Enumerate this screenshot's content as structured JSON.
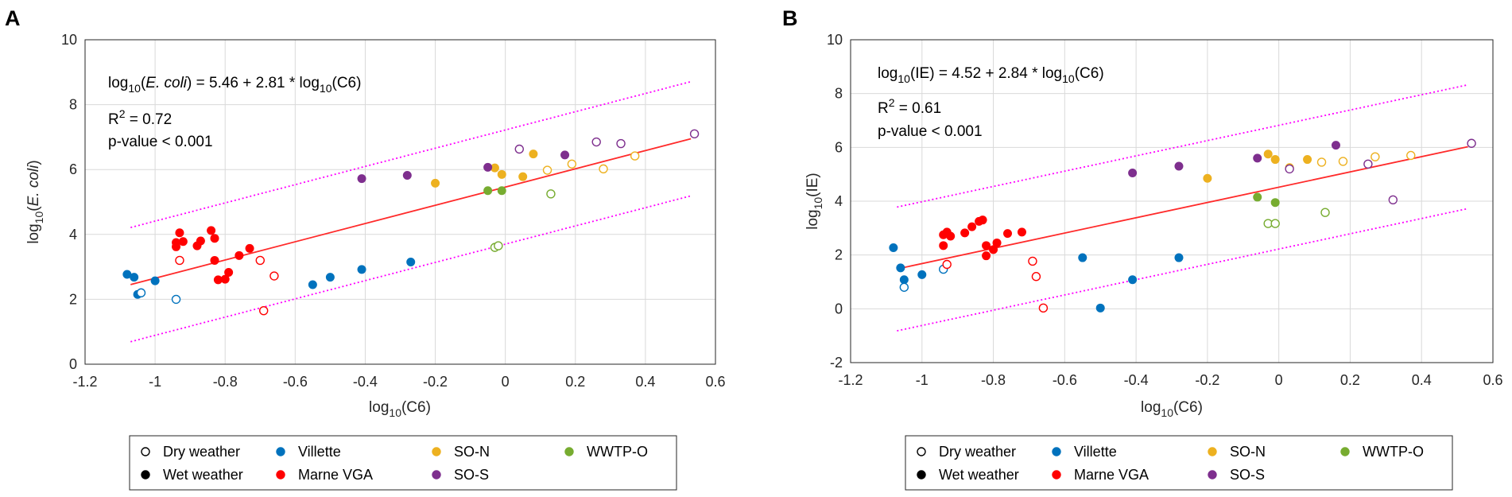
{
  "colors": {
    "Villette": "#0072BD",
    "Marne VGA": "#FF0000",
    "SO-N": "#EDB120",
    "SO-S": "#7E2F8E",
    "WWTP-O": "#77AC30",
    "fit": "#FF2A2A",
    "band": "#FF00FF",
    "grid": "#D9D9D9",
    "axis": "#262626"
  },
  "legend": {
    "items": [
      {
        "label": "Dry weather",
        "kind": "open",
        "color": "#000000"
      },
      {
        "label": "Villette",
        "kind": "filled",
        "color": "#0072BD"
      },
      {
        "label": "SO-N",
        "kind": "filled",
        "color": "#EDB120"
      },
      {
        "label": "WWTP-O",
        "kind": "filled",
        "color": "#77AC30"
      },
      {
        "label": "Wet weather",
        "kind": "filled",
        "color": "#000000"
      },
      {
        "label": "Marne VGA",
        "kind": "filled",
        "color": "#FF0000"
      },
      {
        "label": "SO-S",
        "kind": "filled",
        "color": "#7E2F8E"
      }
    ]
  },
  "chart_data": [
    {
      "panel": "A",
      "type": "scatter",
      "xlabel": {
        "main": "log",
        "sub": "10",
        "rest": "(C6)"
      },
      "ylabel": {
        "main": "log",
        "sub": "10",
        "rest": "(E. coli)"
      },
      "xlim": [
        -1.2,
        0.6
      ],
      "ylim": [
        0,
        10
      ],
      "xticks": [
        -1.2,
        -1,
        -0.8,
        -0.6,
        -0.4,
        -0.2,
        0,
        0.2,
        0.4,
        0.6
      ],
      "yticks": [
        0,
        2,
        4,
        6,
        8,
        10
      ],
      "annotation": {
        "equation_lhs": "log",
        "equation_sub": "10",
        "equation_var": "E. coli",
        "equation_rhs": ") = 5.46 + 2.81 * log",
        "equation_sub2": "10",
        "equation_end": "(C6)",
        "r2_label": "R",
        "r2_sup": "2",
        "r2_value": " = 0.72",
        "pvalue": "p-value < 0.001"
      },
      "fit": {
        "intercept": 5.46,
        "slope": 2.81,
        "x_range": [
          -1.07,
          0.53
        ]
      },
      "band": {
        "offset": 1.76
      },
      "series": [
        {
          "name": "Villette",
          "color": "#0072BD",
          "dry": [
            [
              -1.04,
              2.2
            ],
            [
              -0.94,
              2.0
            ]
          ],
          "wet": [
            [
              -1.08,
              2.77
            ],
            [
              -1.06,
              2.68
            ],
            [
              -1.05,
              2.15
            ],
            [
              -1.0,
              2.57
            ],
            [
              -0.55,
              2.45
            ],
            [
              -0.5,
              2.68
            ],
            [
              -0.41,
              2.92
            ],
            [
              -0.27,
              3.15
            ]
          ]
        },
        {
          "name": "Marne VGA",
          "color": "#FF0000",
          "dry": [
            [
              -0.93,
              3.2
            ],
            [
              -0.7,
              3.2
            ],
            [
              -0.69,
              1.65
            ],
            [
              -0.66,
              2.72
            ]
          ],
          "wet": [
            [
              -0.94,
              3.62
            ],
            [
              -0.94,
              3.75
            ],
            [
              -0.93,
              4.05
            ],
            [
              -0.92,
              3.78
            ],
            [
              -0.88,
              3.65
            ],
            [
              -0.87,
              3.8
            ],
            [
              -0.84,
              4.12
            ],
            [
              -0.83,
              3.88
            ],
            [
              -0.83,
              3.2
            ],
            [
              -0.82,
              2.6
            ],
            [
              -0.8,
              2.62
            ],
            [
              -0.79,
              2.83
            ],
            [
              -0.76,
              3.35
            ],
            [
              -0.73,
              3.57
            ]
          ]
        },
        {
          "name": "SO-N",
          "color": "#EDB120",
          "dry": [
            [
              0.12,
              5.98
            ],
            [
              0.19,
              6.17
            ],
            [
              0.28,
              6.02
            ],
            [
              0.37,
              6.42
            ]
          ],
          "wet": [
            [
              -0.2,
              5.58
            ],
            [
              -0.03,
              6.05
            ],
            [
              -0.01,
              5.85
            ],
            [
              0.05,
              5.78
            ],
            [
              0.08,
              6.48
            ]
          ]
        },
        {
          "name": "SO-S",
          "color": "#7E2F8E",
          "dry": [
            [
              0.04,
              6.63
            ],
            [
              0.26,
              6.85
            ],
            [
              0.33,
              6.8
            ],
            [
              0.54,
              7.1
            ]
          ],
          "wet": [
            [
              -0.41,
              5.72
            ],
            [
              -0.28,
              5.82
            ],
            [
              -0.05,
              6.07
            ],
            [
              0.17,
              6.45
            ]
          ]
        },
        {
          "name": "WWTP-O",
          "color": "#77AC30",
          "dry": [
            [
              -0.03,
              3.6
            ],
            [
              -0.02,
              3.65
            ],
            [
              0.13,
              5.25
            ]
          ],
          "wet": [
            [
              -0.05,
              5.35
            ],
            [
              -0.01,
              5.35
            ]
          ]
        }
      ]
    },
    {
      "panel": "B",
      "type": "scatter",
      "xlabel": {
        "main": "log",
        "sub": "10",
        "rest": "(C6)"
      },
      "ylabel": {
        "main": "log",
        "sub": "10",
        "rest": "(IE)"
      },
      "xlim": [
        -1.2,
        0.6
      ],
      "ylim": [
        -2,
        10
      ],
      "xticks": [
        -1.2,
        -1,
        -0.8,
        -0.6,
        -0.4,
        -0.2,
        0,
        0.2,
        0.4,
        0.6
      ],
      "yticks": [
        -2,
        0,
        2,
        4,
        6,
        8,
        10
      ],
      "annotation": {
        "equation_lhs": "log",
        "equation_sub": "10",
        "equation_var": "IE",
        "equation_rhs": ") = 4.52 + 2.84 * log",
        "equation_sub2": "10",
        "equation_end": "(C6)",
        "r2_label": "R",
        "r2_sup": "2",
        "r2_value": " = 0.61",
        "pvalue": "p-value < 0.001"
      },
      "fit": {
        "intercept": 4.52,
        "slope": 2.84,
        "x_range": [
          -1.07,
          0.53
        ]
      },
      "band": {
        "offset": 2.3
      },
      "series": [
        {
          "name": "Villette",
          "color": "#0072BD",
          "dry": [
            [
              -1.05,
              0.8
            ],
            [
              -0.94,
              1.47
            ]
          ],
          "wet": [
            [
              -1.08,
              2.27
            ],
            [
              -1.06,
              1.52
            ],
            [
              -1.05,
              1.08
            ],
            [
              -1.0,
              1.27
            ],
            [
              -0.55,
              1.9
            ],
            [
              -0.5,
              0.03
            ],
            [
              -0.41,
              1.08
            ],
            [
              -0.28,
              1.9
            ]
          ]
        },
        {
          "name": "Marne VGA",
          "color": "#FF0000",
          "dry": [
            [
              -0.93,
              1.65
            ],
            [
              -0.69,
              1.77
            ],
            [
              -0.68,
              1.2
            ],
            [
              -0.66,
              0.03
            ]
          ],
          "wet": [
            [
              -0.94,
              2.35
            ],
            [
              -0.94,
              2.75
            ],
            [
              -0.93,
              2.85
            ],
            [
              -0.92,
              2.7
            ],
            [
              -0.88,
              2.82
            ],
            [
              -0.86,
              3.05
            ],
            [
              -0.84,
              3.25
            ],
            [
              -0.83,
              3.3
            ],
            [
              -0.82,
              2.35
            ],
            [
              -0.82,
              1.97
            ],
            [
              -0.8,
              2.2
            ],
            [
              -0.79,
              2.45
            ],
            [
              -0.76,
              2.8
            ],
            [
              -0.72,
              2.85
            ]
          ]
        },
        {
          "name": "SO-N",
          "color": "#EDB120",
          "dry": [
            [
              0.12,
              5.45
            ],
            [
              0.18,
              5.48
            ],
            [
              0.27,
              5.65
            ],
            [
              0.37,
              5.7
            ]
          ],
          "wet": [
            [
              -0.2,
              4.85
            ],
            [
              -0.03,
              5.75
            ],
            [
              -0.01,
              5.55
            ],
            [
              0.03,
              5.25
            ],
            [
              0.08,
              5.55
            ]
          ]
        },
        {
          "name": "SO-S",
          "color": "#7E2F8E",
          "dry": [
            [
              0.03,
              5.2
            ],
            [
              0.25,
              5.38
            ],
            [
              0.32,
              4.05
            ],
            [
              0.54,
              6.15
            ]
          ],
          "wet": [
            [
              -0.41,
              5.05
            ],
            [
              -0.28,
              5.3
            ],
            [
              -0.06,
              5.6
            ],
            [
              0.16,
              6.08
            ]
          ]
        },
        {
          "name": "WWTP-O",
          "color": "#77AC30",
          "dry": [
            [
              -0.03,
              3.17
            ],
            [
              -0.01,
              3.17
            ],
            [
              0.13,
              3.58
            ]
          ],
          "wet": [
            [
              -0.06,
              4.15
            ],
            [
              -0.01,
              3.95
            ]
          ]
        }
      ]
    }
  ]
}
